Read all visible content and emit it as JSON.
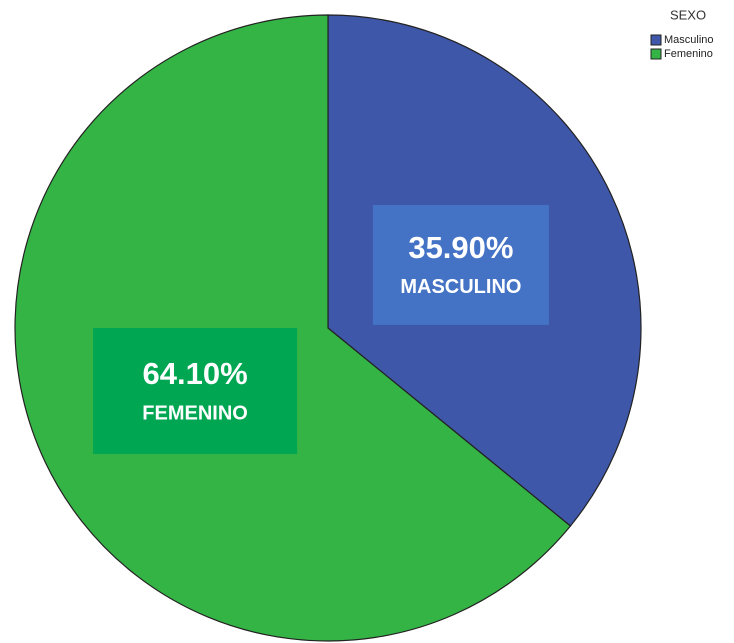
{
  "chart_data": {
    "type": "pie",
    "legend_title": "SEXO",
    "categories": [
      "Masculino",
      "Femenino"
    ],
    "slice_labels": [
      "MASCULINO",
      "FEMENINO"
    ],
    "values": [
      35.9,
      64.1
    ],
    "value_labels": [
      "35.90%",
      "64.10%"
    ],
    "colors": [
      "#3f57a9",
      "#35b446"
    ],
    "label_box_colors": [
      "#4472c4",
      "#00a651"
    ],
    "legend": "top-right"
  }
}
